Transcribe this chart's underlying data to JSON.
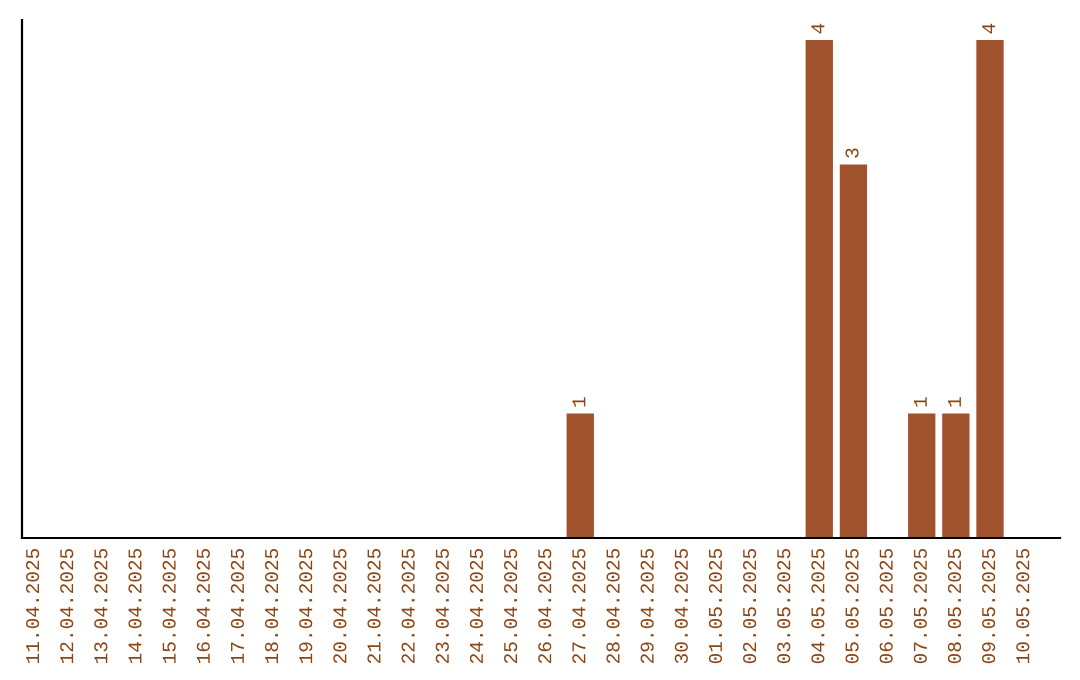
{
  "chart_data": {
    "type": "bar",
    "categories": [
      "11.04.2025",
      "12.04.2025",
      "13.04.2025",
      "14.04.2025",
      "15.04.2025",
      "16.04.2025",
      "17.04.2025",
      "18.04.2025",
      "19.04.2025",
      "20.04.2025",
      "21.04.2025",
      "22.04.2025",
      "23.04.2025",
      "24.04.2025",
      "25.04.2025",
      "26.04.2025",
      "27.04.2025",
      "28.04.2025",
      "29.04.2025",
      "30.04.2025",
      "01.05.2025",
      "02.05.2025",
      "03.05.2025",
      "04.05.2025",
      "05.05.2025",
      "06.05.2025",
      "07.05.2025",
      "08.05.2025",
      "09.05.2025",
      "10.05.2025"
    ],
    "values": [
      null,
      null,
      null,
      null,
      null,
      null,
      null,
      null,
      null,
      null,
      null,
      null,
      null,
      null,
      null,
      null,
      1,
      null,
      null,
      null,
      null,
      null,
      null,
      4,
      3,
      null,
      1,
      1,
      4,
      null
    ],
    "data_labels": true,
    "ylim": [
      0,
      4.16
    ],
    "color": "#a0522d",
    "tick_labels": "x",
    "grid": false,
    "legend": false
  }
}
